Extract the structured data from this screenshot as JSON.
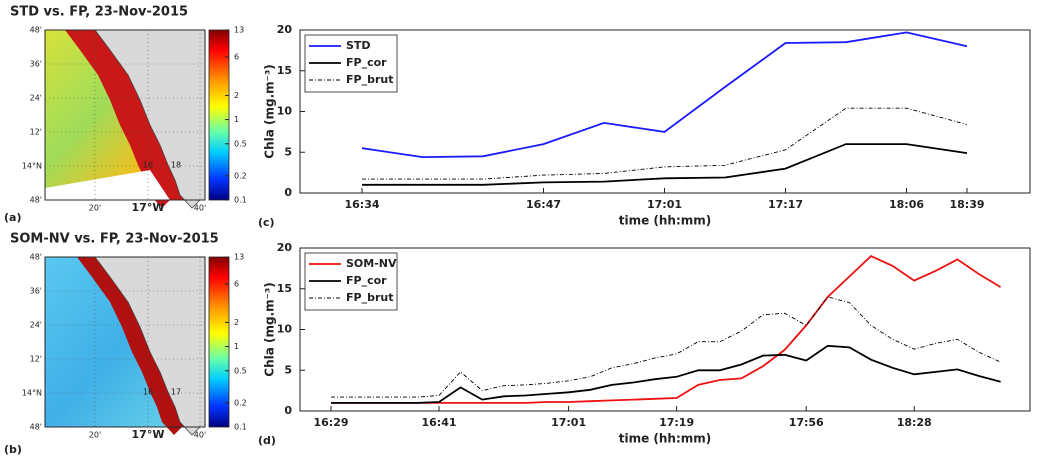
{
  "maps": [
    {
      "title": "STD vs. FP, 23-Nov-2015",
      "panel_label": "(a)",
      "lat_labels": [
        "48'",
        "36'",
        "24'",
        "12'",
        "14°N",
        "48'"
      ],
      "lon_labels": [
        "20'",
        "17°W",
        "40'"
      ],
      "annotations": [
        "16",
        "18"
      ],
      "colorbar": {
        "scale": "log",
        "lim": [
          0.1,
          13
        ],
        "ticks": [
          13,
          6,
          2,
          1,
          0.5,
          0.2,
          0.1
        ]
      }
    },
    {
      "title": "SOM-NV vs. FP, 23-Nov-2015",
      "panel_label": "(b)",
      "lat_labels": [
        "48'",
        "36'",
        "24'",
        "12'",
        "14°N",
        "48'"
      ],
      "lon_labels": [
        "20'",
        "17°W",
        "40'"
      ],
      "annotations": [
        "16",
        "17"
      ],
      "colorbar": {
        "scale": "log",
        "lim": [
          0.1,
          13
        ],
        "ticks": [
          13,
          6,
          2,
          1,
          0.5,
          0.2,
          0.1
        ]
      }
    }
  ],
  "chart_data": [
    {
      "type": "line",
      "panel_label": "(c)",
      "xlabel": "time (hh:mm)",
      "ylabel": "Chla (mg.m⁻³)",
      "categories": [
        "16:34",
        null,
        null,
        "16:47",
        null,
        "17:01",
        null,
        "17:17",
        null,
        "18:06",
        "18:39"
      ],
      "ylim": [
        0,
        20
      ],
      "yticks": [
        0,
        5,
        10,
        15,
        20
      ],
      "legend": "upper left",
      "series": [
        {
          "name": "STD",
          "color": "#1a1aff",
          "linestyle": "solid",
          "values": [
            5.5,
            4.4,
            4.5,
            6.0,
            8.6,
            7.5,
            13.0,
            18.4,
            18.5,
            19.7,
            18.0
          ]
        },
        {
          "name": "FP_cor",
          "color": "#000000",
          "linestyle": "solid",
          "values": [
            1.0,
            1.0,
            1.0,
            1.3,
            1.4,
            1.8,
            1.9,
            3.0,
            6.0,
            6.0,
            4.9
          ]
        },
        {
          "name": "FP_brut",
          "color": "#000000",
          "linestyle": "dashdot",
          "values": [
            1.7,
            1.7,
            1.7,
            2.2,
            2.4,
            3.2,
            3.4,
            5.3,
            10.4,
            10.4,
            8.4
          ]
        }
      ]
    },
    {
      "type": "line",
      "panel_label": "(d)",
      "xlabel": "time (hh:mm)",
      "ylabel": "Chla (mg.m⁻³)",
      "categories": [
        "16:29",
        null,
        null,
        null,
        null,
        "16:41",
        null,
        null,
        null,
        null,
        null,
        "17:01",
        null,
        null,
        null,
        null,
        "17:19",
        null,
        null,
        null,
        null,
        null,
        "17:56",
        null,
        null,
        null,
        null,
        "18:28",
        null,
        null,
        null,
        null
      ],
      "ylim": [
        0,
        20
      ],
      "yticks": [
        0,
        5,
        10,
        15,
        20
      ],
      "legend": "upper left",
      "series": [
        {
          "name": "SOM-NV",
          "color": "#ee1111",
          "linestyle": "solid",
          "values": [
            1,
            1,
            1,
            1,
            1,
            1,
            1,
            1,
            1,
            1,
            1.1,
            1.1,
            1.2,
            1.3,
            1.4,
            1.5,
            1.6,
            3.2,
            3.8,
            4.0,
            5.5,
            7.5,
            10.5,
            14.0,
            16.5,
            19.0,
            17.8,
            16.0,
            17.2,
            18.6,
            16.8,
            15.2
          ]
        },
        {
          "name": "FP_cor",
          "color": "#000000",
          "linestyle": "solid",
          "values": [
            1,
            1,
            1,
            1,
            1,
            1.1,
            2.9,
            1.4,
            1.8,
            1.9,
            2.1,
            2.3,
            2.6,
            3.2,
            3.5,
            3.9,
            4.2,
            5.0,
            5.0,
            5.7,
            6.8,
            6.9,
            6.2,
            8.0,
            7.8,
            6.3,
            5.3,
            4.5,
            4.8,
            5.1,
            4.3,
            3.6
          ]
        },
        {
          "name": "FP_brut",
          "color": "#000000",
          "linestyle": "dashdot",
          "values": [
            1.7,
            1.7,
            1.7,
            1.7,
            1.7,
            1.9,
            4.8,
            2.5,
            3.1,
            3.2,
            3.4,
            3.7,
            4.2,
            5.3,
            5.8,
            6.5,
            7.0,
            8.5,
            8.5,
            9.8,
            11.8,
            12.0,
            10.5,
            14.0,
            13.3,
            10.5,
            8.8,
            7.6,
            8.3,
            8.8,
            7.2,
            6.0
          ]
        }
      ]
    }
  ]
}
